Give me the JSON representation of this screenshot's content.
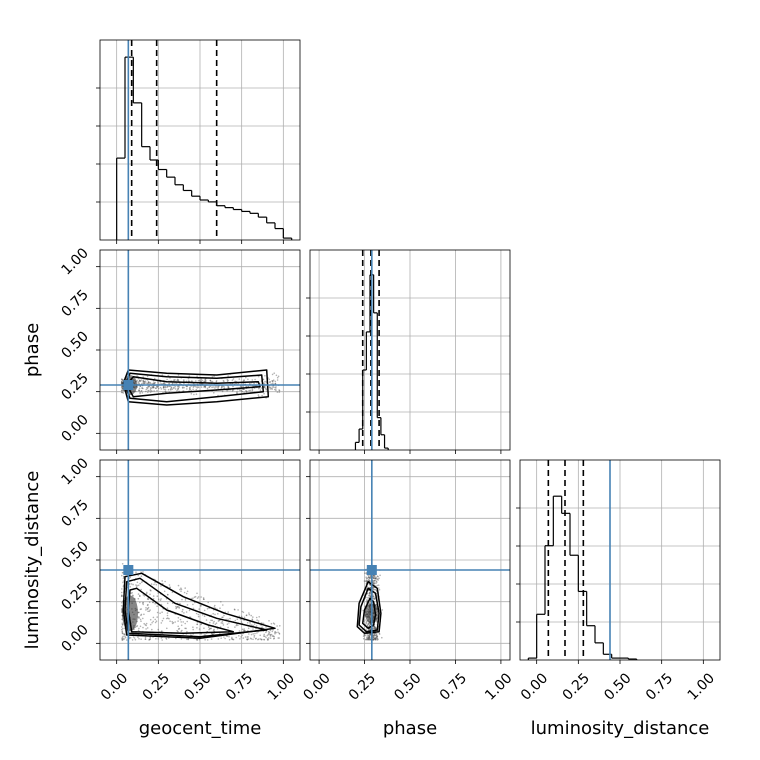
{
  "chart_data": {
    "type": "corner",
    "parameters": [
      "geocent_time",
      "phase",
      "luminosity_distance"
    ],
    "axis_labels": {
      "x": [
        "geocent_time",
        "phase",
        "luminosity_distance"
      ],
      "y": [
        "",
        "phase",
        "luminosity_distance"
      ]
    },
    "tick_values": [
      0.0,
      0.25,
      0.5,
      0.75,
      1.0
    ],
    "tick_labels": [
      "0.00",
      "0.25",
      "0.50",
      "0.75",
      "1.00"
    ],
    "truths": {
      "geocent_time": 0.07,
      "phase": 0.29,
      "luminosity_distance": 0.44
    },
    "colors": {
      "truth": "#4682b4",
      "hist": "#000000",
      "scatter": "#555555",
      "grid": "#b0b0b0"
    },
    "grid": true,
    "histograms": [
      {
        "param": "geocent_time",
        "xlim": [
          -0.1,
          1.1
        ],
        "ymax": 1.05,
        "edges": [
          0.0,
          0.05,
          0.1,
          0.15,
          0.2,
          0.25,
          0.3,
          0.35,
          0.4,
          0.45,
          0.5,
          0.55,
          0.6,
          0.65,
          0.7,
          0.75,
          0.8,
          0.85,
          0.9,
          0.95,
          1.0,
          1.05
        ],
        "counts": [
          0.43,
          0.96,
          0.72,
          0.49,
          0.42,
          0.37,
          0.33,
          0.29,
          0.26,
          0.23,
          0.21,
          0.2,
          0.18,
          0.17,
          0.16,
          0.15,
          0.14,
          0.12,
          0.09,
          0.06,
          0.01
        ],
        "quantiles": [
          0.09,
          0.24,
          0.6
        ]
      },
      {
        "param": "phase",
        "xlim": [
          -0.05,
          1.05
        ],
        "ymax": 1.05,
        "edges": [
          0.2,
          0.22,
          0.24,
          0.26,
          0.28,
          0.3,
          0.32,
          0.34,
          0.36,
          0.38
        ],
        "counts": [
          0.04,
          0.11,
          0.42,
          0.62,
          0.92,
          0.72,
          0.17,
          0.08,
          0.01
        ],
        "quantiles": [
          0.24,
          0.285,
          0.33
        ]
      },
      {
        "param": "luminosity_distance",
        "xlim": [
          -0.1,
          1.1
        ],
        "ymax": 1.05,
        "edges": [
          -0.05,
          0.0,
          0.05,
          0.1,
          0.15,
          0.2,
          0.25,
          0.3,
          0.35,
          0.4,
          0.45,
          0.5,
          0.55,
          0.6
        ],
        "counts": [
          0.01,
          0.24,
          0.6,
          0.86,
          0.77,
          0.55,
          0.36,
          0.18,
          0.09,
          0.03,
          0.01,
          0.01,
          0.005
        ],
        "quantiles": [
          0.07,
          0.17,
          0.28
        ]
      }
    ],
    "pairs": [
      {
        "x": "geocent_time",
        "y": "phase",
        "xlim": [
          -0.1,
          1.1
        ],
        "ylim": [
          -0.1,
          1.1
        ],
        "cloud": {
          "xmin": 0.03,
          "xmax": 0.98,
          "ycenter": 0.29,
          "ywidth_start": 0.06,
          "ywidth_end": 0.09
        },
        "contours": [
          [
            [
              0.06,
              0.29
            ],
            [
              0.1,
              0.34
            ],
            [
              0.3,
              0.31
            ],
            [
              0.6,
              0.3
            ],
            [
              0.85,
              0.31
            ],
            [
              0.86,
              0.28
            ],
            [
              0.6,
              0.26
            ],
            [
              0.3,
              0.24
            ],
            [
              0.1,
              0.22
            ]
          ],
          [
            [
              0.05,
              0.29
            ],
            [
              0.08,
              0.36
            ],
            [
              0.3,
              0.34
            ],
            [
              0.6,
              0.33
            ],
            [
              0.87,
              0.35
            ],
            [
              0.88,
              0.25
            ],
            [
              0.6,
              0.22
            ],
            [
              0.3,
              0.19
            ],
            [
              0.08,
              0.21
            ]
          ],
          [
            [
              0.04,
              0.3
            ],
            [
              0.07,
              0.38
            ],
            [
              0.3,
              0.36
            ],
            [
              0.6,
              0.35
            ],
            [
              0.9,
              0.38
            ],
            [
              0.91,
              0.22
            ],
            [
              0.6,
              0.19
            ],
            [
              0.3,
              0.17
            ],
            [
              0.07,
              0.19
            ]
          ]
        ]
      },
      {
        "x": "geocent_time",
        "y": "luminosity_distance",
        "xlim": [
          -0.1,
          1.1
        ],
        "ylim": [
          -0.1,
          1.1
        ],
        "cloud": {
          "xmin": 0.03,
          "xmax": 0.98,
          "ytop_start": 0.42,
          "ytop_end": 0.1,
          "ybottom": 0.02
        },
        "contours": [
          [
            [
              0.09,
              0.07
            ],
            [
              0.07,
              0.2
            ],
            [
              0.08,
              0.32
            ],
            [
              0.12,
              0.33
            ],
            [
              0.3,
              0.2
            ],
            [
              0.55,
              0.11
            ],
            [
              0.7,
              0.07
            ],
            [
              0.4,
              0.06
            ]
          ],
          [
            [
              0.07,
              0.06
            ],
            [
              0.05,
              0.2
            ],
            [
              0.06,
              0.37
            ],
            [
              0.14,
              0.39
            ],
            [
              0.35,
              0.24
            ],
            [
              0.6,
              0.15
            ],
            [
              0.9,
              0.08
            ],
            [
              0.5,
              0.04
            ]
          ],
          [
            [
              0.06,
              0.05
            ],
            [
              0.04,
              0.2
            ],
            [
              0.05,
              0.4
            ],
            [
              0.15,
              0.42
            ],
            [
              0.4,
              0.28
            ],
            [
              0.65,
              0.18
            ],
            [
              0.95,
              0.09
            ],
            [
              0.5,
              0.03
            ]
          ]
        ]
      },
      {
        "x": "phase",
        "y": "luminosity_distance",
        "xlim": [
          -0.05,
          1.05
        ],
        "ylim": [
          -0.1,
          1.1
        ],
        "cloud": {
          "xcenter": 0.29,
          "xwidth": 0.05,
          "ymin": 0.02,
          "ymax": 0.45
        },
        "contours": [
          [
            [
              0.24,
              0.12
            ],
            [
              0.25,
              0.2
            ],
            [
              0.28,
              0.27
            ],
            [
              0.3,
              0.25
            ],
            [
              0.31,
              0.17
            ],
            [
              0.3,
              0.11
            ],
            [
              0.27,
              0.09
            ]
          ],
          [
            [
              0.22,
              0.11
            ],
            [
              0.23,
              0.22
            ],
            [
              0.27,
              0.33
            ],
            [
              0.31,
              0.3
            ],
            [
              0.33,
              0.18
            ],
            [
              0.32,
              0.08
            ],
            [
              0.26,
              0.07
            ]
          ],
          [
            [
              0.21,
              0.1
            ],
            [
              0.22,
              0.24
            ],
            [
              0.27,
              0.37
            ],
            [
              0.32,
              0.33
            ],
            [
              0.34,
              0.18
            ],
            [
              0.33,
              0.07
            ],
            [
              0.25,
              0.06
            ]
          ]
        ]
      }
    ]
  }
}
